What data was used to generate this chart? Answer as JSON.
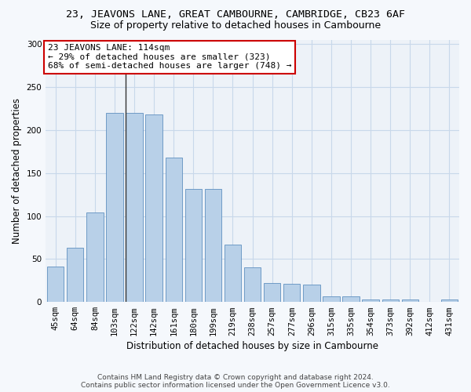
{
  "title_line1": "23, JEAVONS LANE, GREAT CAMBOURNE, CAMBRIDGE, CB23 6AF",
  "title_line2": "Size of property relative to detached houses in Cambourne",
  "xlabel": "Distribution of detached houses by size in Cambourne",
  "ylabel": "Number of detached properties",
  "categories": [
    "45sqm",
    "64sqm",
    "84sqm",
    "103sqm",
    "122sqm",
    "142sqm",
    "161sqm",
    "180sqm",
    "199sqm",
    "219sqm",
    "238sqm",
    "257sqm",
    "277sqm",
    "296sqm",
    "315sqm",
    "335sqm",
    "354sqm",
    "373sqm",
    "392sqm",
    "412sqm",
    "431sqm"
  ],
  "values": [
    41,
    63,
    104,
    220,
    220,
    218,
    168,
    132,
    132,
    67,
    40,
    22,
    21,
    20,
    7,
    7,
    3,
    3,
    3,
    0,
    3
  ],
  "bar_color": "#b8d0e8",
  "bar_edge_color": "#6090c0",
  "annotation_text": "23 JEAVONS LANE: 114sqm\n← 29% of detached houses are smaller (323)\n68% of semi-detached houses are larger (748) →",
  "annotation_box_color": "#ffffff",
  "annotation_box_edge": "#cc0000",
  "vline_color": "#333333",
  "ylim": [
    0,
    305
  ],
  "yticks": [
    0,
    50,
    100,
    150,
    200,
    250,
    300
  ],
  "grid_color": "#c8d8ea",
  "background_color": "#edf2f8",
  "fig_background_color": "#f5f8fc",
  "footer_line1": "Contains HM Land Registry data © Crown copyright and database right 2024.",
  "footer_line2": "Contains public sector information licensed under the Open Government Licence v3.0.",
  "title_fontsize": 9.5,
  "subtitle_fontsize": 9,
  "tick_fontsize": 7.5,
  "ylabel_fontsize": 8.5,
  "xlabel_fontsize": 8.5,
  "bar_width": 0.85,
  "vline_x_index": 3.55
}
